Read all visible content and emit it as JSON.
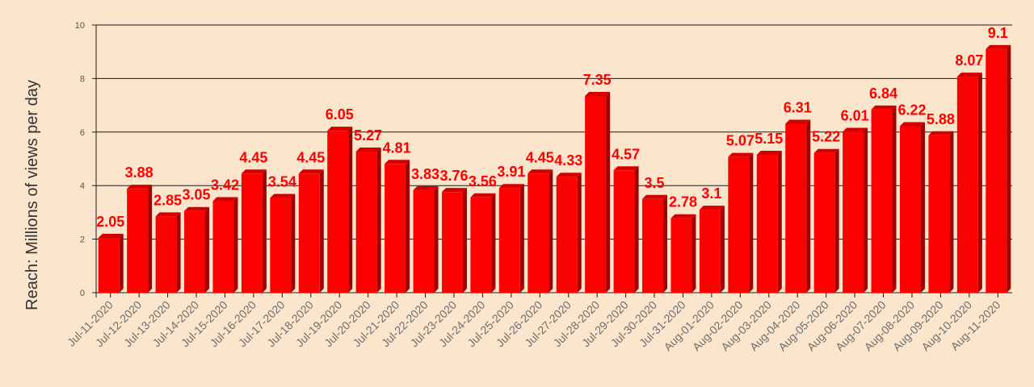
{
  "chart_data": {
    "type": "bar",
    "title": "",
    "xlabel": "",
    "ylabel": "Reach: Millions of views per day",
    "ylim": [
      0,
      10
    ],
    "yticks": [
      "0",
      "2",
      "4",
      "6",
      "8",
      "10"
    ],
    "grid": true,
    "categories": [
      "Jul-11-2020",
      "Jul-12-2020",
      "Jul-13-2020",
      "Jul-14-2020",
      "Jul-15-2020",
      "Jul-16-2020",
      "Jul-17-2020",
      "Jul-18-2020",
      "Jul-19-2020",
      "Jul-20-2020",
      "Jul-21-2020",
      "Jul-22-2020",
      "Jul-23-2020",
      "Jul-24-2020",
      "Jul-25-2020",
      "Jul-26-2020",
      "Jul-27-2020",
      "Jul-28-2020",
      "Jul-29-2020",
      "Jul-30-2020",
      "Jul-31-2020",
      "Aug-01-2020",
      "Aug-02-2020",
      "Aug-03-2020",
      "Aug-04-2020",
      "Aug-05-2020",
      "Aug-06-2020",
      "Aug-07-2020",
      "Aug-08-2020",
      "Aug-09-2020",
      "Aug-10-2020",
      "Aug-11-2020"
    ],
    "values": [
      2.05,
      3.88,
      2.85,
      3.05,
      3.42,
      4.45,
      3.54,
      4.45,
      6.05,
      5.27,
      4.81,
      3.83,
      3.76,
      3.56,
      3.91,
      4.45,
      4.33,
      7.35,
      4.57,
      3.5,
      2.78,
      3.1,
      5.07,
      5.15,
      6.31,
      5.22,
      6.01,
      6.84,
      6.22,
      5.88,
      8.07,
      9.1
    ],
    "bar_color": "#ff0000",
    "label_color": "#ff0000",
    "background": "#fbe5cd"
  }
}
